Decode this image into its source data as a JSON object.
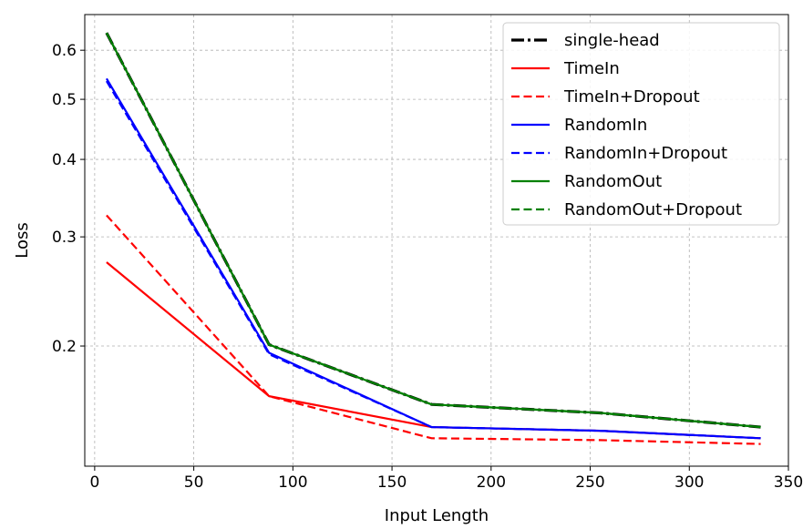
{
  "chart_data": {
    "type": "line",
    "title": "",
    "xlabel": "Input Length",
    "ylabel": "Loss",
    "xscale": "linear",
    "yscale": "log",
    "xlim": [
      -5,
      350
    ],
    "ylim": [
      0.128,
      0.685
    ],
    "xticks": [
      0,
      50,
      100,
      150,
      200,
      250,
      300,
      350
    ],
    "yticks": [
      0.2,
      0.3,
      0.4,
      0.5,
      0.6
    ],
    "ytick_labels": [
      "0.2",
      "0.3",
      "0.4",
      "0.5",
      "0.6"
    ],
    "grid": true,
    "legend_position": "top-right",
    "x": [
      6,
      88,
      170,
      255,
      336
    ],
    "series": [
      {
        "name": "single-head",
        "color": "#000000",
        "dash": "dashdot",
        "values": [
          0.64,
          0.201,
          0.161,
          0.156,
          0.148
        ]
      },
      {
        "name": "TimeIn",
        "color": "#ff0000",
        "dash": "solid",
        "values": [
          0.273,
          0.166,
          0.148,
          0.146,
          0.142
        ]
      },
      {
        "name": "TimeIn+Dropout",
        "color": "#ff0000",
        "dash": "dashed",
        "values": [
          0.325,
          0.166,
          0.142,
          0.141,
          0.139
        ]
      },
      {
        "name": "RandomIn",
        "color": "#0000ff",
        "dash": "solid",
        "values": [
          0.54,
          0.195,
          0.148,
          0.146,
          0.142
        ]
      },
      {
        "name": "RandomIn+Dropout",
        "color": "#0000ff",
        "dash": "dashed",
        "values": [
          0.535,
          0.194,
          0.148,
          0.146,
          0.142
        ]
      },
      {
        "name": "RandomOut",
        "color": "#008000",
        "dash": "solid",
        "values": [
          0.64,
          0.201,
          0.161,
          0.156,
          0.148
        ]
      },
      {
        "name": "RandomOut+Dropout",
        "color": "#008000",
        "dash": "dashed",
        "values": [
          0.64,
          0.201,
          0.161,
          0.156,
          0.148
        ]
      }
    ],
    "legend_order": [
      "single-head",
      "TimeIn",
      "TimeIn+Dropout",
      "RandomIn",
      "RandomIn+Dropout",
      "RandomOut",
      "RandomOut+Dropout"
    ]
  }
}
